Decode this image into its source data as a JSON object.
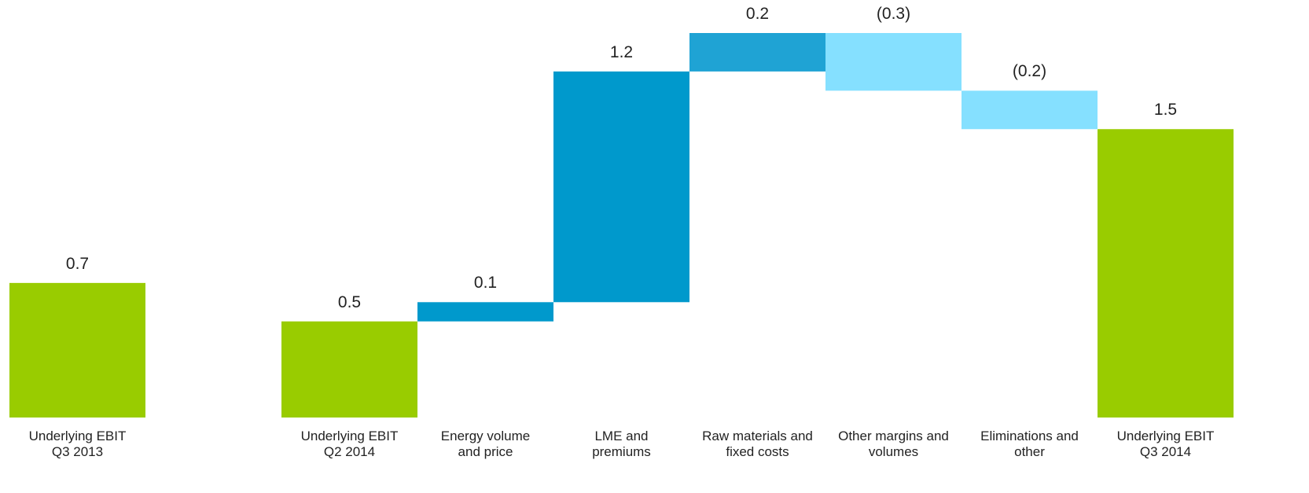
{
  "chart_data": {
    "type": "waterfall",
    "categories": [
      "Underlying EBIT\nQ3 2013",
      null,
      "Underlying EBIT\nQ2 2014",
      "Energy volume\nand price",
      "LME and\npremiums",
      "Raw materials and\nfixed costs",
      "Other margins and\nvolumes",
      "Eliminations and\nother",
      "Underlying EBIT\nQ3 2014"
    ],
    "values": [
      0.7,
      null,
      0.5,
      0.1,
      1.2,
      0.2,
      -0.3,
      -0.2,
      1.5
    ],
    "value_labels": [
      "0.7",
      null,
      "0.5",
      "0.1",
      "1.2",
      "0.2",
      "(0.3)",
      "(0.2)",
      "1.5"
    ],
    "kinds": [
      "total",
      null,
      "total",
      "delta",
      "delta",
      "delta",
      "delta",
      "delta",
      "total"
    ],
    "colors": [
      "#99cc00",
      null,
      "#99cc00",
      "#0099cc",
      "#0099cc",
      "#1fa3d4",
      "#85e0ff",
      "#85e0ff",
      "#99cc00"
    ],
    "ylim": [
      0,
      2.0
    ]
  }
}
